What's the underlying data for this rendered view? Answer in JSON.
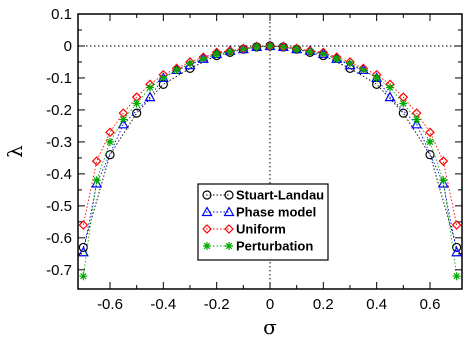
{
  "chart_data": {
    "type": "scatter",
    "xlabel": "σ",
    "ylabel": "λ",
    "xlim": [
      -0.72,
      0.72
    ],
    "ylim": [
      -0.76,
      0.1
    ],
    "xticks": [
      -0.6,
      -0.4,
      -0.2,
      0,
      0.2,
      0.4,
      0.6
    ],
    "xtick_labels": [
      "-0.6",
      "-0.4",
      "-0.2",
      "0",
      "0.2",
      "0.4",
      "0.6"
    ],
    "yticks": [
      0.1,
      0,
      -0.1,
      -0.2,
      -0.3,
      -0.4,
      -0.5,
      -0.6,
      -0.7
    ],
    "ytick_labels": [
      "0.1",
      "0",
      "-0.1",
      "-0.2",
      "-0.3",
      "-0.4",
      "-0.5",
      "-0.6",
      "-0.7"
    ],
    "grid": false,
    "reference_lines": {
      "horizontal": 0,
      "vertical": 0
    },
    "legend_position": "bottom-center",
    "series": [
      {
        "name": "Stuart-Landau",
        "marker": "circle",
        "color": "#000000",
        "x": [
          -0.7,
          -0.6,
          -0.5,
          -0.4,
          -0.3,
          -0.2,
          -0.15,
          -0.1,
          -0.05,
          0,
          0.05,
          0.1,
          0.15,
          0.2,
          0.3,
          0.4,
          0.5,
          0.6,
          0.7
        ],
        "y": [
          -0.63,
          -0.34,
          -0.21,
          -0.12,
          -0.07,
          -0.03,
          -0.02,
          -0.01,
          -0.003,
          0,
          -0.003,
          -0.01,
          -0.02,
          -0.03,
          -0.07,
          -0.12,
          -0.21,
          -0.34,
          -0.63
        ]
      },
      {
        "name": "Phase model",
        "marker": "triangle",
        "color": "#0000ff",
        "x": [
          -0.7,
          -0.65,
          -0.55,
          -0.45,
          -0.4,
          -0.35,
          -0.3,
          -0.25,
          -0.2,
          -0.15,
          -0.1,
          -0.05,
          0,
          0.05,
          0.1,
          0.15,
          0.2,
          0.25,
          0.3,
          0.35,
          0.4,
          0.45,
          0.55,
          0.65,
          0.7
        ],
        "y": [
          -0.645,
          -0.43,
          -0.245,
          -0.16,
          -0.1,
          -0.075,
          -0.06,
          -0.04,
          -0.025,
          -0.015,
          -0.01,
          -0.003,
          0,
          -0.003,
          -0.01,
          -0.015,
          -0.025,
          -0.04,
          -0.06,
          -0.075,
          -0.1,
          -0.16,
          -0.245,
          -0.43,
          -0.645
        ]
      },
      {
        "name": "Uniform",
        "marker": "diamond",
        "color": "#ff0000",
        "x": [
          -0.7,
          -0.65,
          -0.6,
          -0.55,
          -0.5,
          -0.45,
          -0.4,
          -0.35,
          -0.3,
          -0.25,
          -0.2,
          -0.15,
          -0.1,
          -0.05,
          0,
          0.05,
          0.1,
          0.15,
          0.2,
          0.25,
          0.3,
          0.35,
          0.4,
          0.45,
          0.5,
          0.55,
          0.6,
          0.65,
          0.7
        ],
        "y": [
          -0.56,
          -0.36,
          -0.27,
          -0.21,
          -0.16,
          -0.12,
          -0.09,
          -0.07,
          -0.05,
          -0.035,
          -0.02,
          -0.015,
          -0.008,
          -0.002,
          0,
          -0.002,
          -0.008,
          -0.015,
          -0.02,
          -0.035,
          -0.05,
          -0.07,
          -0.09,
          -0.12,
          -0.16,
          -0.21,
          -0.27,
          -0.36,
          -0.56
        ]
      },
      {
        "name": "Perturbation",
        "marker": "star",
        "color": "#00aa00",
        "x": [
          -0.7,
          -0.65,
          -0.6,
          -0.55,
          -0.5,
          -0.45,
          -0.4,
          -0.35,
          -0.3,
          -0.25,
          -0.2,
          -0.15,
          -0.1,
          -0.05,
          0,
          0.05,
          0.1,
          0.15,
          0.2,
          0.25,
          0.3,
          0.35,
          0.4,
          0.45,
          0.5,
          0.55,
          0.6,
          0.65,
          0.7
        ],
        "y": [
          -0.72,
          -0.42,
          -0.3,
          -0.23,
          -0.18,
          -0.13,
          -0.1,
          -0.075,
          -0.055,
          -0.04,
          -0.025,
          -0.018,
          -0.01,
          -0.003,
          0,
          -0.003,
          -0.01,
          -0.018,
          -0.025,
          -0.04,
          -0.055,
          -0.075,
          -0.1,
          -0.13,
          -0.18,
          -0.23,
          -0.3,
          -0.42,
          -0.72
        ]
      }
    ]
  }
}
